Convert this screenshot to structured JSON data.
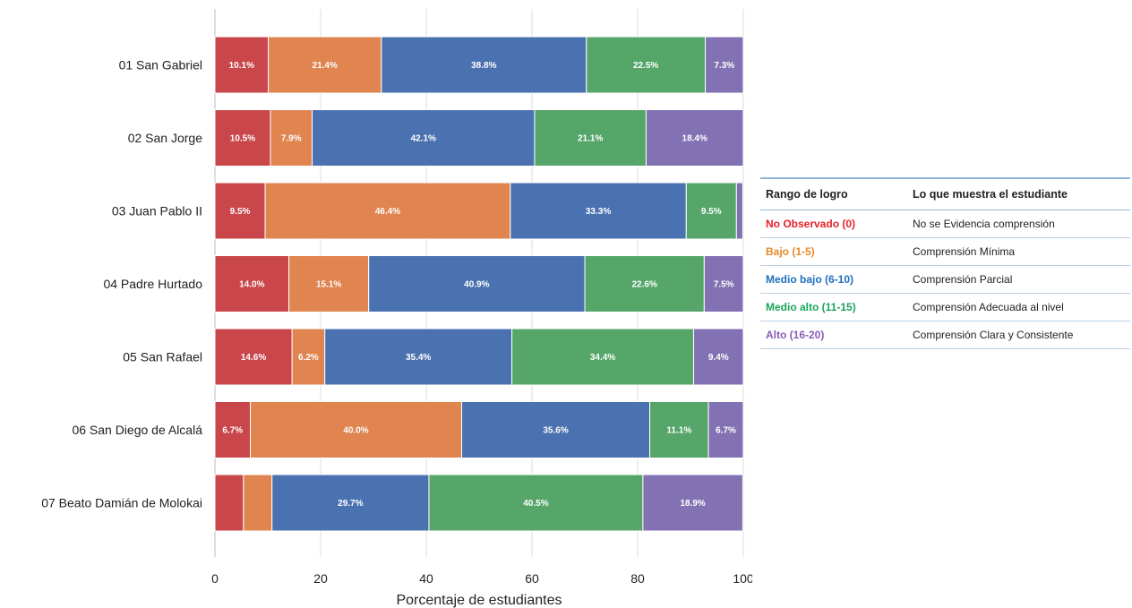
{
  "chart_data": {
    "type": "bar",
    "orientation": "horizontal",
    "stacked": true,
    "categories": [
      "01 San Gabriel",
      "02 San Jorge",
      "03 Juan Pablo II",
      "04 Padre Hurtado",
      "05 San Rafael",
      "06 San Diego de Alcalá",
      "07 Beato Damián de Molokai"
    ],
    "series": [
      {
        "color": "#c9474b",
        "values": [
          10.1,
          10.5,
          9.5,
          14.0,
          14.6,
          6.7,
          5.4
        ],
        "labels": [
          "10.1%",
          "10.5%",
          "9.5%",
          "14.0%",
          "14.6%",
          "6.7%",
          ""
        ]
      },
      {
        "color": "#e08450",
        "values": [
          21.4,
          7.9,
          46.4,
          15.1,
          6.2,
          40.0,
          5.4
        ],
        "labels": [
          "21.4%",
          "7.9%",
          "46.4%",
          "15.1%",
          "6.2%",
          "40.0%",
          ""
        ]
      },
      {
        "color": "#4b72b0",
        "values": [
          38.8,
          42.1,
          33.3,
          40.9,
          35.4,
          35.6,
          29.7
        ],
        "labels": [
          "38.8%",
          "42.1%",
          "33.3%",
          "40.9%",
          "35.4%",
          "35.6%",
          "29.7%"
        ]
      },
      {
        "color": "#56a66a",
        "values": [
          22.5,
          21.1,
          9.5,
          22.6,
          34.4,
          11.1,
          40.5
        ],
        "labels": [
          "22.5%",
          "21.1%",
          "9.5%",
          "22.6%",
          "34.4%",
          "11.1%",
          "40.5%"
        ]
      },
      {
        "color": "#8372b3",
        "values": [
          7.3,
          18.4,
          1.2,
          7.5,
          9.4,
          6.7,
          18.9
        ],
        "labels": [
          "7.3%",
          "18.4%",
          "",
          "7.5%",
          "9.4%",
          "6.7%",
          "18.9%"
        ]
      }
    ],
    "xlabel": "Porcentaje de estudiantes",
    "ylabel": "",
    "xlim": [
      0,
      100
    ],
    "xticks": [
      0,
      20,
      40,
      60,
      80,
      100
    ],
    "xtick_labels": [
      "0",
      "20",
      "40",
      "60",
      "80",
      "100"
    ],
    "grid": "vertical",
    "legend_position": "right"
  },
  "legend_table": {
    "headers": [
      "Rango de logro",
      "Lo que muestra el estudiante"
    ],
    "rows": [
      {
        "range": "No Observado (0)",
        "description": "No se Evidencia comprensión",
        "color": "#e8202a"
      },
      {
        "range": "Bajo (1-5)",
        "description": "Comprensión Mínima",
        "color": "#e98a2a"
      },
      {
        "range": "Medio bajo (6-10)",
        "description": "Comprensión Parcial",
        "color": "#1f6fbf"
      },
      {
        "range": "Medio alto (11-15)",
        "description": "Comprensión Adecuada al nivel",
        "color": "#1aa35a"
      },
      {
        "range": "Alto (16-20)",
        "description": "Comprensión Clara y Consistente",
        "color": "#8a5bb8"
      }
    ]
  }
}
